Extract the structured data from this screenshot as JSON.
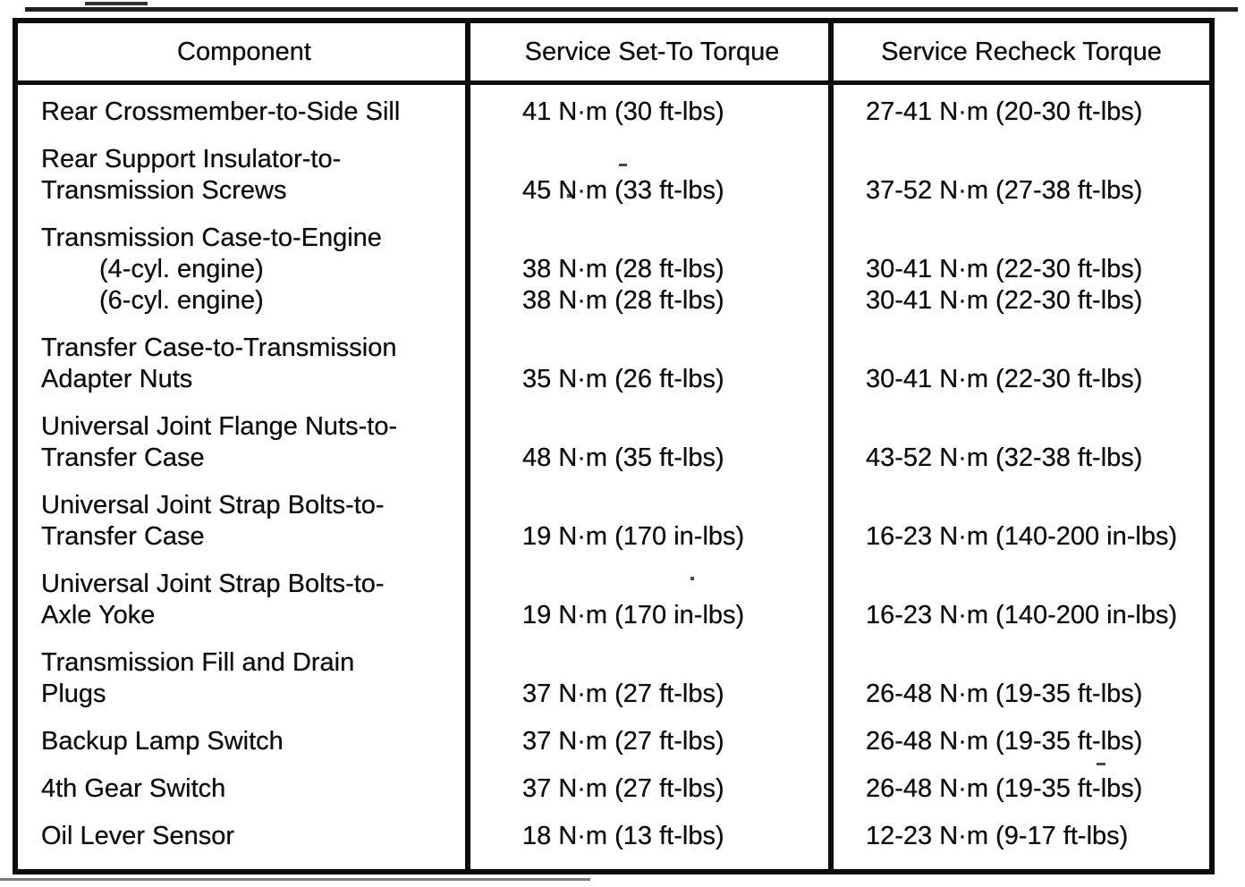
{
  "page": {
    "background_color": "#ffffff",
    "ink_color": "#0d0d0d"
  },
  "table": {
    "headers": [
      "Component",
      "Service Set-To Torque",
      "Service Recheck Torque"
    ],
    "rows": [
      {
        "component": [
          {
            "text": "Rear Crossmember-to-Side Sill",
            "indent": false
          }
        ],
        "set_to": [
          "41 N·m (30 ft-lbs)"
        ],
        "recheck": [
          "27-41 N·m (20-30 ft-lbs)"
        ]
      },
      {
        "component": [
          {
            "text": "Rear Support Insulator-to-",
            "indent": false
          },
          {
            "text": "Transmission Screws",
            "indent": false
          }
        ],
        "set_to": [
          "45 N·m (33 ft-lbs)"
        ],
        "recheck": [
          "37-52 N·m (27-38 ft-lbs)"
        ]
      },
      {
        "component": [
          {
            "text": "Transmission Case-to-Engine",
            "indent": false
          },
          {
            "text": "(4-cyl. engine)",
            "indent": true
          },
          {
            "text": "(6-cyl. engine)",
            "indent": true
          }
        ],
        "set_to": [
          "38 N·m (28 ft-lbs)",
          "38 N·m (28 ft-lbs)"
        ],
        "recheck": [
          "30-41 N·m (22-30 ft-lbs)",
          "30-41 N·m (22-30 ft-lbs)"
        ]
      },
      {
        "component": [
          {
            "text": "Transfer Case-to-Transmission",
            "indent": false
          },
          {
            "text": "Adapter Nuts",
            "indent": false
          }
        ],
        "set_to": [
          "35 N·m (26 ft-lbs)"
        ],
        "recheck": [
          "30-41 N·m (22-30 ft-lbs)"
        ]
      },
      {
        "component": [
          {
            "text": "Universal Joint Flange Nuts-to-",
            "indent": false
          },
          {
            "text": "Transfer Case",
            "indent": false
          }
        ],
        "set_to": [
          "48 N·m (35 ft-lbs)"
        ],
        "recheck": [
          "43-52 N·m (32-38 ft-lbs)"
        ]
      },
      {
        "component": [
          {
            "text": "Universal Joint Strap Bolts-to-",
            "indent": false
          },
          {
            "text": "Transfer Case",
            "indent": false
          }
        ],
        "set_to": [
          "19 N·m (170 in-lbs)"
        ],
        "recheck": [
          "16-23 N·m (140-200 in-lbs)"
        ]
      },
      {
        "component": [
          {
            "text": "Universal Joint Strap Bolts-to-",
            "indent": false
          },
          {
            "text": "Axle Yoke",
            "indent": false
          }
        ],
        "set_to": [
          "19 N·m (170 in-lbs)"
        ],
        "recheck": [
          "16-23 N·m (140-200 in-lbs)"
        ]
      },
      {
        "component": [
          {
            "text": "Transmission Fill and Drain",
            "indent": false
          },
          {
            "text": "Plugs",
            "indent": false
          }
        ],
        "set_to": [
          "37 N·m (27 ft-lbs)"
        ],
        "recheck": [
          "26-48 N·m (19-35 ft-lbs)"
        ]
      },
      {
        "component": [
          {
            "text": "Backup Lamp Switch",
            "indent": false
          }
        ],
        "set_to": [
          "37 N·m (27 ft-lbs)"
        ],
        "recheck": [
          "26-48 N·m (19-35 ft-lbs)"
        ]
      },
      {
        "component": [
          {
            "text": "4th Gear Switch",
            "indent": false
          }
        ],
        "set_to": [
          "37 N·m (27 ft-lbs)"
        ],
        "recheck": [
          "26-48 N·m (19-35 ft-lbs)"
        ]
      },
      {
        "component": [
          {
            "text": "Oil Lever Sensor",
            "indent": false
          }
        ],
        "set_to": [
          "18 N·m (13 ft-lbs)"
        ],
        "recheck": [
          "12-23 N·m (9-17 ft-lbs)"
        ]
      }
    ]
  }
}
